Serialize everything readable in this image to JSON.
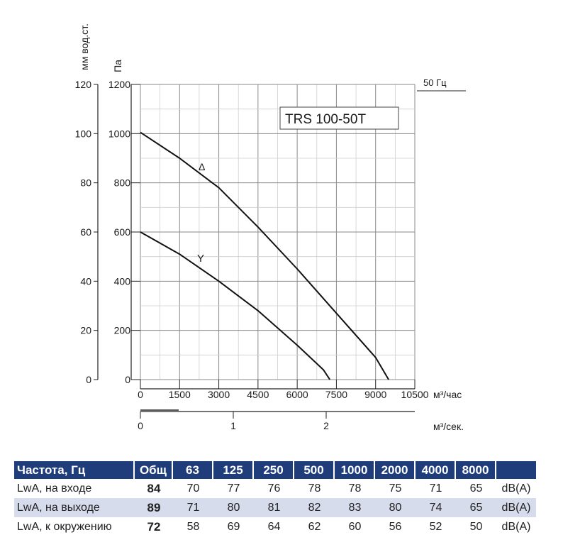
{
  "chart_data": {
    "type": "line",
    "title": "TRS 100-50T",
    "frequency_label": "50 Гц",
    "ylabel_left": "мм вод.ст.",
    "ylabel_right": "Па",
    "xlabel_primary": "м³/час",
    "xlabel_secondary": "м³/сек.",
    "ylim": [
      0,
      1200
    ],
    "xlim": [
      0,
      10500
    ],
    "yticks_pa": [
      "0",
      "200",
      "400",
      "600",
      "800",
      "1000",
      "1200"
    ],
    "yticks_mm": [
      "0",
      "20",
      "40",
      "60",
      "80",
      "100",
      "120"
    ],
    "xticks": [
      "0",
      "1500",
      "3000",
      "4500",
      "6000",
      "7500",
      "9000",
      "10500"
    ],
    "xticks_secondary": [
      "0",
      "1",
      "2"
    ],
    "xticks_secondary_values": [
      0,
      1,
      2
    ],
    "grid": true,
    "series": [
      {
        "name": "Δ",
        "color": "#111111",
        "x": [
          0,
          1500,
          3000,
          4500,
          6000,
          7500,
          9000,
          9500
        ],
        "y": [
          1005,
          900,
          780,
          620,
          450,
          270,
          90,
          0
        ]
      },
      {
        "name": "Y",
        "color": "#111111",
        "x": [
          0,
          1500,
          3000,
          4500,
          6000,
          7000,
          7250
        ],
        "y": [
          600,
          510,
          400,
          280,
          140,
          40,
          0
        ]
      }
    ]
  },
  "noise_table": {
    "header": [
      "Частота, Гц",
      "Общ",
      "63",
      "125",
      "250",
      "500",
      "1000",
      "2000",
      "4000",
      "8000",
      ""
    ],
    "rows": [
      [
        "LwA, на входе",
        "84",
        "70",
        "77",
        "76",
        "78",
        "78",
        "75",
        "71",
        "65",
        "dB(A)"
      ],
      [
        "LwA, на выходе",
        "89",
        "71",
        "80",
        "81",
        "82",
        "83",
        "80",
        "74",
        "65",
        "dB(A)"
      ],
      [
        "LwA, к окружению",
        "72",
        "58",
        "69",
        "64",
        "62",
        "60",
        "56",
        "52",
        "50",
        "dB(A)"
      ]
    ],
    "header_color": "#1f3d7a",
    "shade_color": "#d6dcec"
  }
}
